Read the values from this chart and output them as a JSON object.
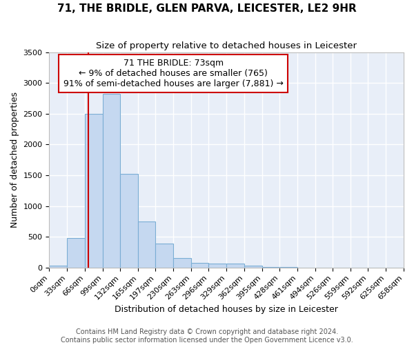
{
  "title": "71, THE BRIDLE, GLEN PARVA, LEICESTER, LE2 9HR",
  "subtitle": "Size of property relative to detached houses in Leicester",
  "xlabel": "Distribution of detached houses by size in Leicester",
  "ylabel": "Number of detached properties",
  "bar_color": "#c5d8f0",
  "bar_edge_color": "#7aadd4",
  "background_color": "#e8eef8",
  "grid_color": "#ffffff",
  "annotation_box_color": "#cc0000",
  "red_line_x": 73,
  "bin_edges": [
    0,
    33,
    66,
    99,
    132,
    165,
    197,
    230,
    263,
    296,
    329,
    362,
    395,
    428,
    461,
    494,
    526,
    559,
    592,
    625,
    658
  ],
  "bar_heights": [
    30,
    480,
    2500,
    2820,
    1520,
    750,
    390,
    150,
    80,
    60,
    60,
    30,
    10,
    5,
    0,
    0,
    0,
    0,
    0,
    0
  ],
  "annotation_lines": [
    "71 THE BRIDLE: 73sqm",
    "← 9% of detached houses are smaller (765)",
    "91% of semi-detached houses are larger (7,881) →"
  ],
  "ylim": [
    0,
    3500
  ],
  "yticks": [
    0,
    500,
    1000,
    1500,
    2000,
    2500,
    3000,
    3500
  ],
  "footer_line1": "Contains HM Land Registry data © Crown copyright and database right 2024.",
  "footer_line2": "Contains public sector information licensed under the Open Government Licence v3.0.",
  "title_fontsize": 11,
  "subtitle_fontsize": 9.5,
  "tick_label_fontsize": 8,
  "ylabel_fontsize": 9,
  "xlabel_fontsize": 9,
  "annotation_fontsize": 9,
  "footer_fontsize": 7
}
